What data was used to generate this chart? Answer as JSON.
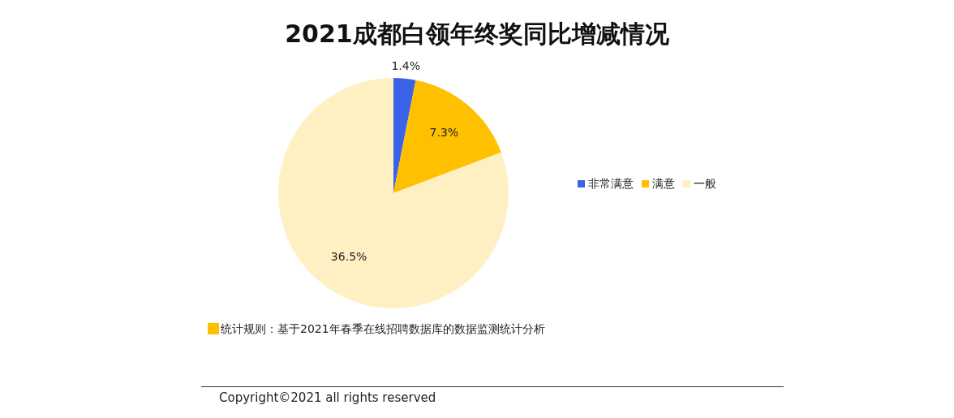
{
  "chart_data": {
    "type": "pie",
    "title": "2021成都白领年终奖同比增减情况",
    "categories": [
      "非常满意",
      "满意",
      "一般"
    ],
    "values": [
      1.4,
      7.3,
      36.5
    ],
    "value_labels": [
      "1.4%",
      "7.3%",
      "36.5%"
    ],
    "colors": [
      "#3a63e8",
      "#ffc000",
      "#fff0c4"
    ],
    "legend": "right",
    "annotations": [
      "统计规则：基于2021年春季在线招聘数据库的数据监测统计分析",
      "Copyright©2021 all rights reserved"
    ]
  }
}
